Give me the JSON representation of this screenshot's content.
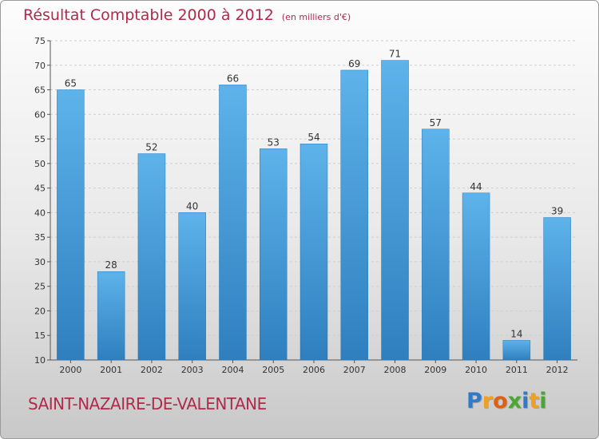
{
  "chart_data": {
    "type": "bar",
    "title": "Résultat Comptable 2000 à 2012",
    "subtitle": "(en milliers d'€)",
    "categories": [
      "2000",
      "2001",
      "2002",
      "2003",
      "2004",
      "2005",
      "2006",
      "2007",
      "2008",
      "2009",
      "2010",
      "2011",
      "2012"
    ],
    "values": [
      65,
      28,
      52,
      40,
      66,
      53,
      54,
      69,
      71,
      57,
      44,
      14,
      39
    ],
    "ylim": [
      10,
      75
    ],
    "yticks": [
      10,
      15,
      20,
      25,
      30,
      35,
      40,
      45,
      50,
      55,
      60,
      65,
      70,
      75
    ],
    "grid": true,
    "bar_color": "#4a9fdc",
    "title_color": "#b02a4a"
  },
  "place_name": "SAINT-NAZAIRE-DE-VALENTANE",
  "logo": {
    "letters": [
      "P",
      "r",
      "o",
      "x",
      "i",
      "t",
      "i"
    ],
    "colors": [
      "#2f7bc9",
      "#f0a020",
      "#e06010",
      "#4aa832",
      "#2f7bc9",
      "#f0a020",
      "#4aa832"
    ]
  }
}
